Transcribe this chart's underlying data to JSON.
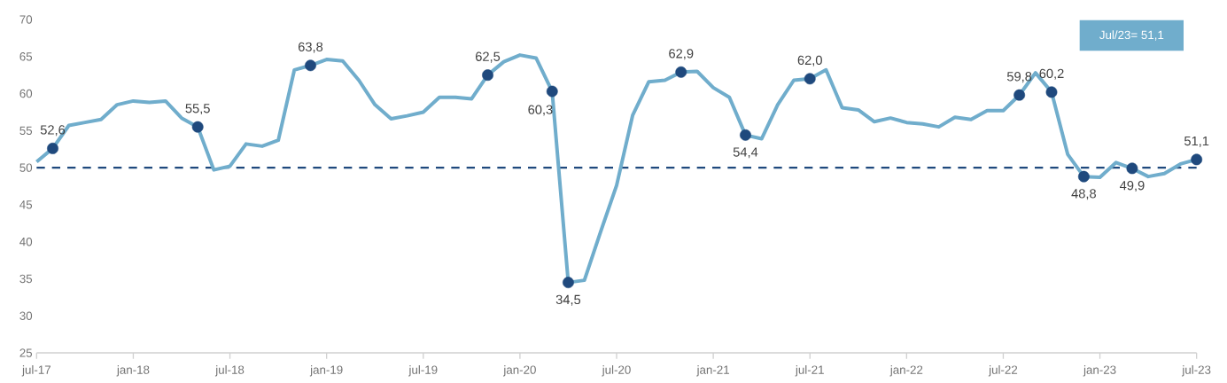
{
  "chart_data": {
    "type": "line",
    "x": [
      "2017-07",
      "2017-08",
      "2017-09",
      "2017-10",
      "2017-11",
      "2017-12",
      "2018-01",
      "2018-02",
      "2018-03",
      "2018-04",
      "2018-05",
      "2018-06",
      "2018-07",
      "2018-08",
      "2018-09",
      "2018-10",
      "2018-11",
      "2018-12",
      "2019-01",
      "2019-02",
      "2019-03",
      "2019-04",
      "2019-05",
      "2019-06",
      "2019-07",
      "2019-08",
      "2019-09",
      "2019-10",
      "2019-11",
      "2019-12",
      "2020-01",
      "2020-02",
      "2020-03",
      "2020-04",
      "2020-05",
      "2020-06",
      "2020-07",
      "2020-08",
      "2020-09",
      "2020-10",
      "2020-11",
      "2020-12",
      "2021-01",
      "2021-02",
      "2021-03",
      "2021-04",
      "2021-05",
      "2021-06",
      "2021-07",
      "2021-08",
      "2021-09",
      "2021-10",
      "2021-11",
      "2021-12",
      "2022-01",
      "2022-02",
      "2022-03",
      "2022-04",
      "2022-05",
      "2022-06",
      "2022-07",
      "2022-08",
      "2022-09",
      "2022-10",
      "2022-11",
      "2022-12",
      "2023-01",
      "2023-02",
      "2023-03",
      "2023-04",
      "2023-05",
      "2023-06",
      "2023-07"
    ],
    "series": [
      {
        "color": "#70adcc",
        "marker": "none",
        "line_style": "solid",
        "values": [
          50.8,
          52.6,
          55.7,
          56.1,
          56.5,
          58.5,
          59.0,
          58.8,
          59.0,
          56.7,
          55.5,
          49.7,
          50.2,
          53.2,
          52.9,
          53.7,
          63.2,
          63.8,
          64.6,
          64.4,
          61.8,
          58.5,
          56.6,
          57.0,
          57.5,
          59.5,
          59.5,
          59.3,
          62.5,
          64.3,
          65.2,
          64.8,
          60.3,
          34.5,
          34.8,
          41.3,
          47.6,
          57.1,
          61.6,
          61.8,
          62.9,
          63.0,
          60.8,
          59.5,
          54.4,
          53.9,
          58.5,
          61.8,
          62.0,
          63.2,
          58.1,
          57.8,
          56.2,
          56.7,
          56.1,
          55.9,
          55.5,
          56.8,
          56.5,
          57.7,
          57.7,
          59.8,
          62.8,
          60.2,
          51.8,
          48.8,
          48.7,
          50.7,
          49.9,
          48.8,
          49.2,
          50.5,
          51.1
        ]
      },
      {
        "type": "scatter",
        "color": "#1f497d",
        "marker": "circle",
        "values": [
          null,
          52.6,
          null,
          null,
          null,
          null,
          null,
          null,
          null,
          null,
          55.5,
          null,
          null,
          null,
          null,
          null,
          null,
          63.8,
          null,
          null,
          null,
          null,
          null,
          null,
          null,
          null,
          null,
          null,
          62.5,
          null,
          null,
          null,
          60.3,
          34.5,
          null,
          null,
          null,
          null,
          null,
          null,
          62.9,
          null,
          null,
          null,
          54.4,
          null,
          null,
          null,
          62.0,
          null,
          null,
          null,
          null,
          null,
          null,
          null,
          null,
          null,
          null,
          null,
          null,
          59.8,
          null,
          60.2,
          null,
          48.8,
          null,
          null,
          49.9,
          null,
          null,
          null,
          51.1
        ],
        "value_labels": [
          null,
          "52,6",
          null,
          null,
          null,
          null,
          null,
          null,
          null,
          null,
          "55,5",
          null,
          null,
          null,
          null,
          null,
          null,
          "63,8",
          null,
          null,
          null,
          null,
          null,
          null,
          null,
          null,
          null,
          null,
          "62,5",
          null,
          null,
          null,
          "60,3",
          "34,5",
          null,
          null,
          null,
          null,
          null,
          null,
          "62,9",
          null,
          null,
          null,
          "54,4",
          null,
          null,
          null,
          "62,0",
          null,
          null,
          null,
          null,
          null,
          null,
          null,
          null,
          null,
          null,
          null,
          null,
          "59,8",
          null,
          "60,2",
          null,
          "48,8",
          null,
          null,
          "49,9",
          null,
          null,
          null,
          "51,1"
        ]
      }
    ],
    "xlim": [
      "2017-07",
      "2023-07"
    ],
    "xticks": [
      {
        "value": "2017-07",
        "label": "jul-17"
      },
      {
        "value": "2018-01",
        "label": "jan-18"
      },
      {
        "value": "2018-07",
        "label": "jul-18"
      },
      {
        "value": "2019-01",
        "label": "jan-19"
      },
      {
        "value": "2019-07",
        "label": "jul-19"
      },
      {
        "value": "2020-01",
        "label": "jan-20"
      },
      {
        "value": "2020-07",
        "label": "jul-20"
      },
      {
        "value": "2021-01",
        "label": "jan-21"
      },
      {
        "value": "2021-07",
        "label": "jul-21"
      },
      {
        "value": "2022-01",
        "label": "jan-22"
      },
      {
        "value": "2022-07",
        "label": "jul-22"
      },
      {
        "value": "2023-01",
        "label": "jan-23"
      },
      {
        "value": "2023-07",
        "label": "jul-23"
      }
    ],
    "ylim": [
      25,
      70
    ],
    "yticks": [
      25,
      30,
      35,
      40,
      45,
      50,
      55,
      60,
      65,
      70
    ],
    "ref_lines": [
      {
        "axis": "y",
        "value": 50,
        "color": "#1f497d",
        "line_style": "dashed"
      }
    ],
    "annotations": [
      "Jul/23= 51,1"
    ]
  }
}
